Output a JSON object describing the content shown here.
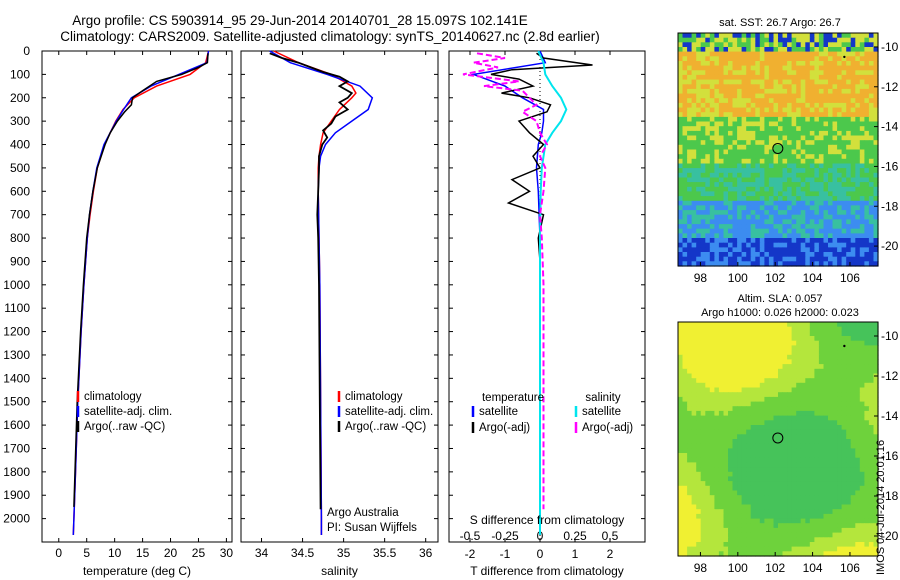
{
  "header": {
    "line1": "Argo profile: CS 5903914_95 29-Jun-2014 20140701_28 15.097S 102.141E",
    "line2": "Climatology: CARS2009. Satellite-adjusted climatology: synTS_20140627.nc (2.8d earlier)"
  },
  "depth_ticks": [
    "0",
    "100",
    "200",
    "300",
    "400",
    "500",
    "600",
    "700",
    "800",
    "900",
    "1000",
    "1100",
    "1200",
    "1300",
    "1400",
    "1500",
    "1600",
    "1700",
    "1800",
    "1900",
    "2000"
  ],
  "colors": {
    "climatology": "#ff0000",
    "satellite": "#0000ff",
    "argo": "#000000",
    "sat_salinity": "#00e5ee",
    "argo_salinity": "#ff00ff"
  },
  "chart_data": [
    {
      "type": "line",
      "xlabel": "temperature (deg C)",
      "xticks": [
        "0",
        "5",
        "10",
        "15",
        "20",
        "25",
        "30"
      ],
      "xlim": [
        -3,
        31
      ],
      "ylim": [
        2100,
        0
      ],
      "legend": [
        "climatology",
        "satellite-adj. clim.",
        "Argo(..raw -QC)"
      ],
      "series": [
        {
          "name": "climatology",
          "depth": [
            0,
            50,
            100,
            150,
            200,
            250,
            300,
            400,
            500,
            600,
            700,
            800,
            1000,
            1200,
            1500,
            1800,
            2000,
            2070
          ],
          "values": [
            26.8,
            26.3,
            23.5,
            17.5,
            13.5,
            11.5,
            10.2,
            8.2,
            6.9,
            6.2,
            5.6,
            5.1,
            4.5,
            4.0,
            3.4,
            3.0,
            2.7,
            2.6
          ]
        },
        {
          "name": "satellite-adj. clim.",
          "depth": [
            0,
            50,
            100,
            150,
            200,
            250,
            300,
            400,
            500,
            600,
            700,
            800,
            1000,
            1200,
            1500,
            1800,
            2000,
            2070
          ],
          "values": [
            26.8,
            26.5,
            21.5,
            16.5,
            13.0,
            11.6,
            10.3,
            8.1,
            6.8,
            6.1,
            5.5,
            5.1,
            4.5,
            4.0,
            3.4,
            3.0,
            2.7,
            2.6
          ]
        },
        {
          "name": "Argo(..raw -QC)",
          "depth": [
            10,
            50,
            70,
            100,
            130,
            170,
            200,
            230,
            260,
            300,
            350,
            400,
            450,
            500,
            600,
            700,
            800,
            1000,
            1200,
            1500,
            1800,
            1950
          ],
          "values": [
            26.7,
            26.6,
            25.0,
            22.0,
            17.5,
            15.0,
            13.2,
            13.0,
            11.8,
            10.5,
            9.2,
            8.3,
            7.6,
            6.9,
            6.1,
            5.5,
            5.0,
            4.4,
            3.9,
            3.3,
            2.9,
            2.7
          ]
        }
      ]
    },
    {
      "type": "line",
      "xlabel": "salinity",
      "xticks": [
        "34",
        "34.5",
        "35",
        "35.5",
        "36"
      ],
      "xlim": [
        33.75,
        36.15
      ],
      "ylim": [
        2100,
        0
      ],
      "legend": [
        "climatology",
        "satellite-adj. clim.",
        "Argo(..raw -QC)"
      ],
      "annotation": [
        "Argo Australia",
        "PI: Susan Wijffels"
      ],
      "series": [
        {
          "name": "climatology",
          "depth": [
            0,
            50,
            100,
            150,
            180,
            200,
            250,
            300,
            350,
            400,
            450,
            500,
            600,
            800,
            1000,
            1500,
            2000,
            2070
          ],
          "values": [
            34.15,
            34.45,
            34.85,
            35.1,
            35.15,
            35.1,
            34.95,
            34.85,
            34.75,
            34.72,
            34.7,
            34.69,
            34.69,
            34.7,
            34.71,
            34.72,
            34.73,
            34.73
          ]
        },
        {
          "name": "satellite-adj. clim.",
          "depth": [
            0,
            50,
            100,
            150,
            200,
            250,
            300,
            350,
            400,
            450,
            500,
            600,
            800,
            1000,
            1500,
            2000,
            2070
          ],
          "values": [
            34.1,
            34.35,
            34.8,
            35.2,
            35.35,
            35.3,
            35.1,
            34.9,
            34.78,
            34.72,
            34.7,
            34.69,
            34.7,
            34.71,
            34.72,
            34.73,
            34.73
          ]
        },
        {
          "name": "Argo(..raw -QC)",
          "depth": [
            10,
            30,
            50,
            70,
            90,
            110,
            130,
            150,
            180,
            200,
            220,
            250,
            280,
            310,
            340,
            370,
            400,
            450,
            500,
            600,
            700,
            800,
            1000,
            1500,
            1960
          ],
          "values": [
            34.1,
            34.25,
            34.45,
            34.6,
            34.75,
            34.95,
            35.05,
            34.95,
            35.1,
            35.05,
            34.95,
            35.05,
            34.9,
            34.85,
            34.75,
            34.8,
            34.74,
            34.7,
            34.7,
            34.69,
            34.68,
            34.69,
            34.7,
            34.71,
            34.72
          ]
        }
      ]
    },
    {
      "type": "line",
      "xlabel": "T difference from climatology",
      "xlabel_top": "S difference from climatology",
      "xticks": [
        "-2",
        "-1",
        "0",
        "1",
        "2"
      ],
      "xticks_top": [
        "-0.5",
        "-0.25",
        "0",
        "0.25",
        "0.5"
      ],
      "xlim": [
        -2.6,
        3.0
      ],
      "ylim": [
        2100,
        0
      ],
      "legend_temperature": {
        "heading": "temperature",
        "items": [
          "satellite",
          "Argo(-adj)"
        ]
      },
      "legend_salinity": {
        "heading": "salinity",
        "items": [
          "satellite",
          "Argo(-adj)"
        ]
      },
      "series": [
        {
          "name": "temperature satellite",
          "depth": [
            0,
            50,
            100,
            150,
            200,
            250,
            300,
            350,
            400,
            500,
            600,
            800,
            1000,
            1500,
            2000,
            2070
          ],
          "values": [
            0.0,
            0.15,
            -1.9,
            -1.0,
            -0.5,
            0.1,
            0.1,
            0.05,
            -0.05,
            -0.1,
            -0.05,
            0.0,
            0.0,
            0.0,
            0.0,
            0.0
          ]
        },
        {
          "name": "temperature Argo(-adj)",
          "depth": [
            10,
            30,
            60,
            80,
            100,
            120,
            150,
            180,
            200,
            230,
            260,
            300,
            350,
            400,
            450,
            500,
            550,
            600,
            650,
            700,
            800,
            900,
            1000,
            1500,
            1960
          ],
          "values": [
            -0.1,
            0.1,
            1.5,
            -0.8,
            -1.4,
            -0.6,
            -0.2,
            -1.1,
            -0.3,
            0.3,
            0.2,
            -0.6,
            -0.3,
            0.1,
            -0.2,
            0.0,
            -0.8,
            -0.3,
            -0.9,
            0.1,
            -0.05,
            0.0,
            0.0,
            0.0,
            0.0
          ]
        },
        {
          "name": "salinity satellite",
          "depth": [
            0,
            50,
            100,
            150,
            200,
            250,
            300,
            350,
            400,
            500,
            600,
            800,
            1000,
            1500,
            2000,
            2070
          ],
          "values": [
            -0.05,
            0.1,
            0.15,
            0.35,
            0.6,
            0.75,
            0.6,
            0.35,
            0.15,
            0.05,
            0.02,
            0.0,
            0.0,
            0.0,
            0.0,
            0.0
          ]
        },
        {
          "name": "salinity Argo(-adj)",
          "depth": [
            10,
            30,
            50,
            70,
            100,
            130,
            150,
            170,
            200,
            230,
            260,
            300,
            350,
            400,
            450,
            500,
            600,
            700,
            800,
            1000,
            1500,
            1960
          ],
          "values": [
            -1.8,
            -1.0,
            -1.9,
            -1.2,
            -2.2,
            -0.6,
            -1.6,
            -0.5,
            -0.3,
            -0.1,
            -0.5,
            -0.1,
            0.0,
            0.2,
            0.0,
            0.15,
            0.1,
            0.0,
            0.05,
            0.1,
            0.1,
            0.1
          ]
        }
      ]
    }
  ],
  "maps": {
    "sst_title": "sat. SST: 26.7  Argo: 26.7",
    "sla_title_1": "Altim. SLA: 0.057",
    "sla_title_2": "Argo h1000: 0.026  h2000: 0.023",
    "lon_ticks": [
      "98",
      "100",
      "102",
      "104",
      "106"
    ],
    "lat_ticks": [
      "-10",
      "-12",
      "-14",
      "-16",
      "-18",
      "-20"
    ],
    "float_marker_lon": 102.141,
    "float_marker_lat": -15.097
  },
  "stamp": "IMOS 04-Jul-2014 20:01:16"
}
